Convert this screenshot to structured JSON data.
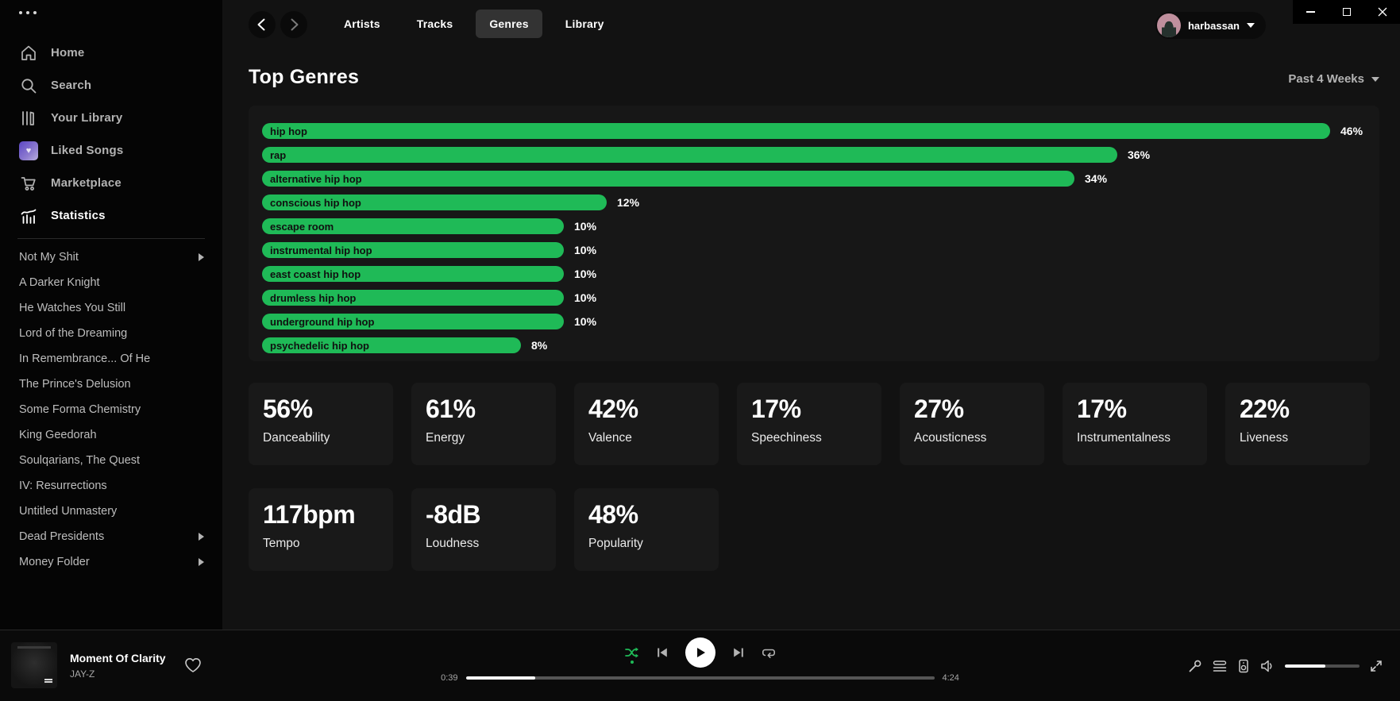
{
  "sidebar": {
    "nav": [
      {
        "label": "Home",
        "icon": "home-icon",
        "active": false
      },
      {
        "label": "Search",
        "icon": "search-icon",
        "active": false
      },
      {
        "label": "Your Library",
        "icon": "library-icon",
        "active": false
      },
      {
        "label": "Liked Songs",
        "icon": "liked-heart-icon",
        "active": false
      },
      {
        "label": "Marketplace",
        "icon": "cart-icon",
        "active": false
      },
      {
        "label": "Statistics",
        "icon": "stats-icon",
        "active": true
      }
    ],
    "playlists": [
      {
        "label": "Not My Shit",
        "has_submenu": true
      },
      {
        "label": "A Darker Knight",
        "has_submenu": false
      },
      {
        "label": "He Watches You Still",
        "has_submenu": false
      },
      {
        "label": "Lord of the Dreaming",
        "has_submenu": false
      },
      {
        "label": "In Remembrance... Of He",
        "has_submenu": false
      },
      {
        "label": "The Prince's Delusion",
        "has_submenu": false
      },
      {
        "label": "Some Forma Chemistry",
        "has_submenu": false
      },
      {
        "label": "King Geedorah",
        "has_submenu": false
      },
      {
        "label": "Soulqarians, The Quest",
        "has_submenu": false
      },
      {
        "label": "IV: Resurrections",
        "has_submenu": false
      },
      {
        "label": "Untitled Unmastery",
        "has_submenu": false
      },
      {
        "label": "Dead Presidents",
        "has_submenu": true
      },
      {
        "label": "Money Folder",
        "has_submenu": true
      }
    ]
  },
  "topnav": {
    "tabs": [
      {
        "label": "Artists",
        "active": false
      },
      {
        "label": "Tracks",
        "active": false
      },
      {
        "label": "Genres",
        "active": true
      },
      {
        "label": "Library",
        "active": false
      }
    ],
    "user": {
      "name": "harbassan"
    }
  },
  "page": {
    "title": "Top Genres",
    "time_range": "Past 4 Weeks"
  },
  "chart_data": {
    "type": "bar",
    "orientation": "horizontal",
    "title": "Top Genres",
    "unit": "%",
    "categories": [
      "hip hop",
      "rap",
      "alternative hip hop",
      "conscious hip hop",
      "escape room",
      "instrumental hip hop",
      "east coast hip hop",
      "drumless hip hop",
      "underground hip hop",
      "psychedelic hip hop"
    ],
    "values": [
      46,
      36,
      34,
      12,
      10,
      10,
      10,
      10,
      10,
      8
    ],
    "value_labels": [
      "46%",
      "36%",
      "34%",
      "12%",
      "10%",
      "10%",
      "10%",
      "10%",
      "10%",
      "8%"
    ],
    "bar_color": "#1fba57",
    "xlim": [
      0,
      46
    ],
    "grid": false,
    "legend": "none"
  },
  "stats": {
    "row1": [
      {
        "value": "56%",
        "label": "Danceability"
      },
      {
        "value": "61%",
        "label": "Energy"
      },
      {
        "value": "42%",
        "label": "Valence"
      },
      {
        "value": "17%",
        "label": "Speechiness"
      },
      {
        "value": "27%",
        "label": "Acousticness"
      },
      {
        "value": "17%",
        "label": "Instrumentalness"
      },
      {
        "value": "22%",
        "label": "Liveness"
      }
    ],
    "row2": [
      {
        "value": "117bpm",
        "label": "Tempo"
      },
      {
        "value": "-8dB",
        "label": "Loudness"
      },
      {
        "value": "48%",
        "label": "Popularity"
      }
    ]
  },
  "player": {
    "track": {
      "title": "Moment Of Clarity",
      "artist": "JAY-Z"
    },
    "elapsed": "0:39",
    "duration": "4:24",
    "progress_pct": 14.8,
    "shuffle_active": true,
    "volume_pct": 54
  },
  "colors": {
    "accent": "#1fba57",
    "background": "#121212",
    "panel": "#171717",
    "card": "#191919",
    "sidebar": "#050505",
    "text_muted": "#b3b3b3"
  }
}
